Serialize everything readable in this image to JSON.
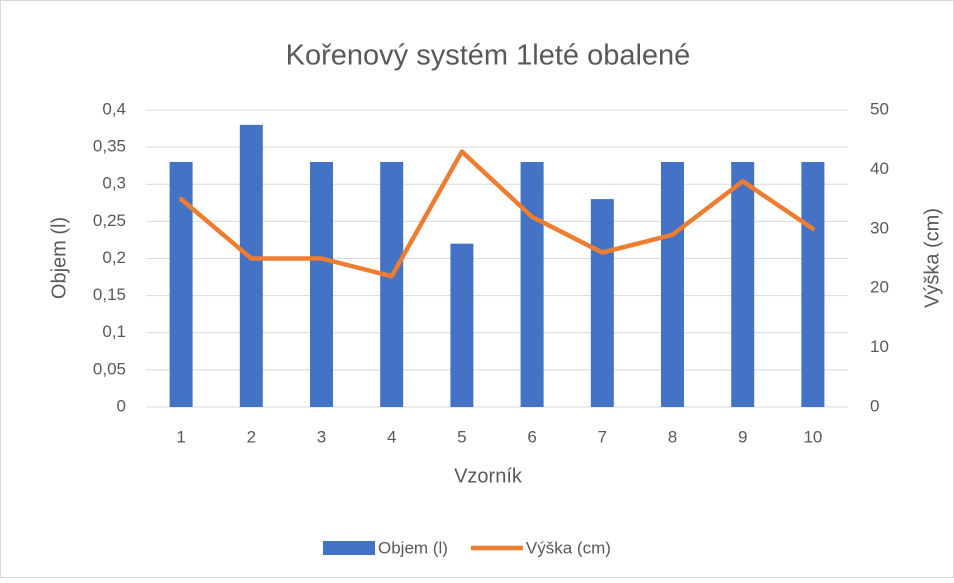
{
  "chart_data": {
    "type": "combo",
    "title": "Kořenový systém 1leté obalené",
    "x_label": "Vzorník",
    "y_label": "Objem (l)",
    "y2_label": "Výška (cm)",
    "categories": [
      "1",
      "2",
      "3",
      "4",
      "5",
      "6",
      "7",
      "8",
      "9",
      "10"
    ],
    "series": [
      {
        "name": "Objem (l)",
        "type": "bar",
        "color": "#4472c4",
        "values": [
          0.33,
          0.38,
          0.33,
          0.33,
          0.22,
          0.33,
          0.28,
          0.33,
          0.33,
          0.33
        ]
      },
      {
        "name": "Výška (cm)",
        "type": "line",
        "axis": "y2",
        "color": "#ed7d31",
        "values": [
          35,
          25,
          25,
          22,
          43,
          32,
          26,
          29,
          38,
          30
        ]
      }
    ],
    "ylim": [
      0,
      0.4
    ],
    "yticks": [
      0,
      {
        "value": 0.05,
        "label": "0,05"
      },
      {
        "value": 0.1,
        "label": "0,1"
      },
      {
        "value": 0.15,
        "label": "0,15"
      },
      {
        "value": 0.2,
        "label": "0,2"
      },
      {
        "value": 0.25,
        "label": "0,25"
      },
      {
        "value": 0.3,
        "label": "0,3"
      },
      {
        "value": 0.35,
        "label": "0,35"
      },
      {
        "value": 0.4,
        "label": "0,4"
      }
    ],
    "y2lim": [
      0,
      50
    ],
    "y2ticks": [
      0,
      10,
      20,
      30,
      40,
      50
    ],
    "grid": true,
    "legend": "bottom"
  }
}
